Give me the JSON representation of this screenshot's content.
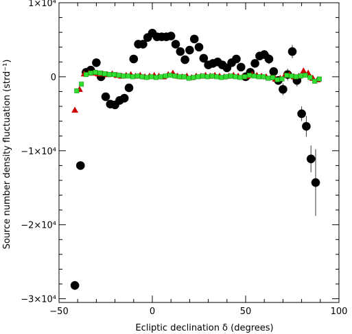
{
  "chart_data": {
    "type": "scatter",
    "xlabel": "Ecliptic declination δ (degrees)",
    "ylabel": "Source number density fluctuation (strd⁻¹)",
    "xlim": [
      -50,
      100
    ],
    "ylim": [
      -30500,
      10000
    ],
    "x_ticks": [
      -50,
      0,
      50,
      100
    ],
    "x_tick_labels": [
      "−50",
      "0",
      "50",
      "100"
    ],
    "y_ticks": [
      10000,
      0,
      -10000,
      -20000,
      -30000
    ],
    "y_tick_labels": [
      "1×10⁴",
      "0",
      "−1×10⁴",
      "−2×10⁴",
      "−3×10⁴"
    ],
    "grid": false,
    "series": [
      {
        "marker": "circle",
        "color": "#000000",
        "points": [
          {
            "x": -41.5,
            "y": -28200,
            "err": 600
          },
          {
            "x": -38.5,
            "y": -12000,
            "err": 500
          },
          {
            "x": -35.5,
            "y": 600,
            "err": 300
          },
          {
            "x": -33,
            "y": 900,
            "err": 300
          },
          {
            "x": -30,
            "y": 1900,
            "err": 300
          },
          {
            "x": -27.5,
            "y": 0,
            "err": 300
          },
          {
            "x": -25,
            "y": -2700,
            "err": 300
          },
          {
            "x": -22.5,
            "y": -3700,
            "err": 300
          },
          {
            "x": -20,
            "y": -3800,
            "err": 300
          },
          {
            "x": -17.5,
            "y": -3200,
            "err": 300
          },
          {
            "x": -15,
            "y": -2900,
            "err": 300
          },
          {
            "x": -12.5,
            "y": -1500,
            "err": 300
          },
          {
            "x": -10,
            "y": 2400,
            "err": 300
          },
          {
            "x": -7.5,
            "y": 4400,
            "err": 300
          },
          {
            "x": -5,
            "y": 4400,
            "err": 300
          },
          {
            "x": -2.5,
            "y": 5300,
            "err": 300
          },
          {
            "x": 0,
            "y": 5900,
            "err": 300
          },
          {
            "x": 2.5,
            "y": 5400,
            "err": 300
          },
          {
            "x": 5,
            "y": 5400,
            "err": 300
          },
          {
            "x": 7.5,
            "y": 5400,
            "err": 300
          },
          {
            "x": 10,
            "y": 5500,
            "err": 300
          },
          {
            "x": 12.5,
            "y": 4400,
            "err": 300
          },
          {
            "x": 15,
            "y": 3400,
            "err": 300
          },
          {
            "x": 17.5,
            "y": 2300,
            "err": 300
          },
          {
            "x": 20,
            "y": 3600,
            "err": 300
          },
          {
            "x": 22.5,
            "y": 5100,
            "err": 300
          },
          {
            "x": 25,
            "y": 4000,
            "err": 300
          },
          {
            "x": 27.5,
            "y": 2500,
            "err": 300
          },
          {
            "x": 30,
            "y": 1600,
            "err": 300
          },
          {
            "x": 32.5,
            "y": 1800,
            "err": 300
          },
          {
            "x": 35,
            "y": 2000,
            "err": 300
          },
          {
            "x": 37.5,
            "y": 1600,
            "err": 300
          },
          {
            "x": 40,
            "y": 1200,
            "err": 300
          },
          {
            "x": 42.5,
            "y": 1900,
            "err": 300
          },
          {
            "x": 45,
            "y": 2400,
            "err": 300
          },
          {
            "x": 47.5,
            "y": 1300,
            "err": 300
          },
          {
            "x": 50,
            "y": 0,
            "err": 300
          },
          {
            "x": 52.5,
            "y": 600,
            "err": 300
          },
          {
            "x": 55,
            "y": 1800,
            "err": 400
          },
          {
            "x": 57.5,
            "y": 2800,
            "err": 400
          },
          {
            "x": 60,
            "y": 3000,
            "err": 600
          },
          {
            "x": 62.5,
            "y": 2400,
            "err": 700
          },
          {
            "x": 65,
            "y": 700,
            "err": 600
          },
          {
            "x": 67.5,
            "y": -500,
            "err": 500
          },
          {
            "x": 70,
            "y": -1700,
            "err": 800
          },
          {
            "x": 72.5,
            "y": 300,
            "err": 800
          },
          {
            "x": 75,
            "y": 3400,
            "err": 900
          },
          {
            "x": 77.5,
            "y": -500,
            "err": 800
          },
          {
            "x": 80,
            "y": -5000,
            "err": 1000
          },
          {
            "x": 82.5,
            "y": -6700,
            "err": 1400
          },
          {
            "x": 85,
            "y": -11100,
            "err": 1800
          },
          {
            "x": 87.5,
            "y": -14300,
            "err": 4500
          }
        ]
      },
      {
        "marker": "triangle",
        "color": "#cc0000",
        "points": [
          {
            "x": -41.5,
            "y": -4500
          },
          {
            "x": -39,
            "y": -1700
          },
          {
            "x": -36.5,
            "y": 400
          },
          {
            "x": -34,
            "y": 500
          },
          {
            "x": -31.5,
            "y": 500
          },
          {
            "x": -29,
            "y": 400
          },
          {
            "x": -26.5,
            "y": 400
          },
          {
            "x": -24,
            "y": 300
          },
          {
            "x": -21.5,
            "y": 400
          },
          {
            "x": -19,
            "y": 200
          },
          {
            "x": -16.5,
            "y": 100
          },
          {
            "x": -14,
            "y": 200
          },
          {
            "x": -11.5,
            "y": 300
          },
          {
            "x": -9,
            "y": 100
          },
          {
            "x": -6.5,
            "y": 200
          },
          {
            "x": -4,
            "y": 0
          },
          {
            "x": -1.5,
            "y": 100
          },
          {
            "x": 1,
            "y": 200
          },
          {
            "x": 3.5,
            "y": 100
          },
          {
            "x": 6,
            "y": 0
          },
          {
            "x": 8.5,
            "y": 300
          },
          {
            "x": 11,
            "y": 500
          },
          {
            "x": 13.5,
            "y": 100
          },
          {
            "x": 16,
            "y": 0
          },
          {
            "x": 18.5,
            "y": 100
          },
          {
            "x": 21,
            "y": -100
          },
          {
            "x": 23.5,
            "y": 100
          },
          {
            "x": 26,
            "y": 100
          },
          {
            "x": 28.5,
            "y": 200
          },
          {
            "x": 31,
            "y": 100
          },
          {
            "x": 33.5,
            "y": 200
          },
          {
            "x": 36,
            "y": 100
          },
          {
            "x": 38.5,
            "y": 0
          },
          {
            "x": 41,
            "y": 100
          },
          {
            "x": 43.5,
            "y": 200
          },
          {
            "x": 46,
            "y": 100
          },
          {
            "x": 48.5,
            "y": 0
          },
          {
            "x": 51,
            "y": 100
          },
          {
            "x": 53.5,
            "y": 300
          },
          {
            "x": 56,
            "y": 200
          },
          {
            "x": 58.5,
            "y": 100
          },
          {
            "x": 61,
            "y": 0
          },
          {
            "x": 63.5,
            "y": -100
          },
          {
            "x": 66,
            "y": -300
          },
          {
            "x": 68.5,
            "y": -200
          },
          {
            "x": 71,
            "y": 200
          },
          {
            "x": 73.5,
            "y": 300
          },
          {
            "x": 76,
            "y": 0
          },
          {
            "x": 78.5,
            "y": 100
          },
          {
            "x": 81,
            "y": 800
          },
          {
            "x": 83.5,
            "y": 500
          },
          {
            "x": 86,
            "y": -200
          },
          {
            "x": 88.5,
            "y": -400
          }
        ]
      },
      {
        "marker": "square",
        "color": "#33dd33",
        "points": [
          {
            "x": -40.5,
            "y": -1900
          },
          {
            "x": -38,
            "y": -1000
          },
          {
            "x": -35.5,
            "y": 300
          },
          {
            "x": -33,
            "y": 500
          },
          {
            "x": -30.5,
            "y": 600
          },
          {
            "x": -28,
            "y": 500
          },
          {
            "x": -25.5,
            "y": 400
          },
          {
            "x": -23,
            "y": 300
          },
          {
            "x": -20.5,
            "y": 300
          },
          {
            "x": -18,
            "y": 200
          },
          {
            "x": -15.5,
            "y": 100
          },
          {
            "x": -13,
            "y": 100
          },
          {
            "x": -10.5,
            "y": 0
          },
          {
            "x": -8,
            "y": 100
          },
          {
            "x": -5.5,
            "y": 0
          },
          {
            "x": -3,
            "y": -100
          },
          {
            "x": -0.5,
            "y": 0
          },
          {
            "x": 2,
            "y": -100
          },
          {
            "x": 4.5,
            "y": 0
          },
          {
            "x": 7,
            "y": 100
          },
          {
            "x": 9.5,
            "y": 200
          },
          {
            "x": 12,
            "y": 100
          },
          {
            "x": 14.5,
            "y": 0
          },
          {
            "x": 17,
            "y": 0
          },
          {
            "x": 19.5,
            "y": -200
          },
          {
            "x": 22,
            "y": -100
          },
          {
            "x": 24.5,
            "y": 0
          },
          {
            "x": 27,
            "y": 100
          },
          {
            "x": 29.5,
            "y": 0
          },
          {
            "x": 32,
            "y": 100
          },
          {
            "x": 34.5,
            "y": 0
          },
          {
            "x": 37,
            "y": -100
          },
          {
            "x": 39.5,
            "y": 0
          },
          {
            "x": 42,
            "y": 100
          },
          {
            "x": 44.5,
            "y": 0
          },
          {
            "x": 47,
            "y": -100
          },
          {
            "x": 49.5,
            "y": 0
          },
          {
            "x": 52,
            "y": 200
          },
          {
            "x": 54.5,
            "y": 100
          },
          {
            "x": 57,
            "y": 0
          },
          {
            "x": 59.5,
            "y": 0
          },
          {
            "x": 62,
            "y": -200
          },
          {
            "x": 64.5,
            "y": -100
          },
          {
            "x": 67,
            "y": -400
          },
          {
            "x": 69.5,
            "y": -300
          },
          {
            "x": 72,
            "y": 200
          },
          {
            "x": 74.5,
            "y": 100
          },
          {
            "x": 77,
            "y": 0
          },
          {
            "x": 79.5,
            "y": 100
          },
          {
            "x": 82,
            "y": 200
          },
          {
            "x": 84.5,
            "y": -100
          },
          {
            "x": 87,
            "y": -600
          },
          {
            "x": 89.5,
            "y": -300
          }
        ]
      }
    ]
  }
}
